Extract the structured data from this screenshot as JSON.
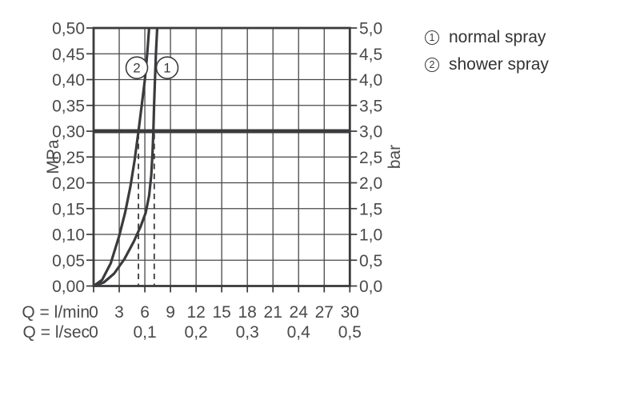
{
  "colors": {
    "ink": "#3b3b3d",
    "grid": "#47474a",
    "axis_text": "#4a4a4c",
    "legend_text": "#333335",
    "background": "#ffffff"
  },
  "legend": {
    "items": [
      {
        "symbol": "1",
        "label": "normal spray"
      },
      {
        "symbol": "2",
        "label": "shower spray"
      }
    ]
  },
  "chart_data": {
    "type": "line",
    "title": "",
    "grid": true,
    "x_axis": {
      "unit_primary": "Q = l/min",
      "unit_secondary": "Q = l/sec",
      "range_lmin": [
        0,
        30
      ],
      "tick_values_lmin": [
        0,
        3,
        6,
        9,
        12,
        15,
        18,
        21,
        24,
        27,
        30
      ],
      "tick_labels_lmin": [
        "0",
        "3",
        "6",
        "9",
        "12",
        "15",
        "18",
        "21",
        "24",
        "27",
        "30"
      ],
      "tick_values_lsec_positions_lmin": [
        0,
        6,
        12,
        18,
        24,
        30
      ],
      "tick_labels_lsec": [
        "0",
        "0,1",
        "0,2",
        "0,3",
        "0,4",
        "0,5"
      ]
    },
    "y_axis_left": {
      "unit": "MPa",
      "range": [
        0,
        0.5
      ],
      "tick_values": [
        0,
        0.05,
        0.1,
        0.15,
        0.2,
        0.25,
        0.3,
        0.35,
        0.4,
        0.45,
        0.5
      ],
      "tick_labels": [
        "0,00",
        "0,05",
        "0,10",
        "0,15",
        "0,20",
        "0,25",
        "0,30",
        "0,35",
        "0,40",
        "0,45",
        "0,50"
      ]
    },
    "y_axis_right": {
      "unit": "bar",
      "range": [
        0,
        5
      ],
      "tick_values": [
        0,
        0.5,
        1.0,
        1.5,
        2.0,
        2.5,
        3.0,
        3.5,
        4.0,
        4.5,
        5.0
      ],
      "tick_labels": [
        "0,0",
        "0,5",
        "1,0",
        "1,5",
        "2,0",
        "2,5",
        "3,0",
        "3,5",
        "4,0",
        "4,5",
        "5,0"
      ]
    },
    "reference_line": {
      "value_mpa": 0.3,
      "value_bar": 3.0
    },
    "dashed_guides_lmin": [
      5.25,
      7.1
    ],
    "series": [
      {
        "id": "1",
        "name": "normal spray",
        "flow_at_3bar_lmin": 7.1,
        "points_lmin_mpa": [
          [
            0,
            0
          ],
          [
            1.2,
            0.007
          ],
          [
            2.4,
            0.024
          ],
          [
            3.6,
            0.052
          ],
          [
            4.7,
            0.086
          ],
          [
            5.5,
            0.115
          ],
          [
            6.1,
            0.142
          ],
          [
            6.5,
            0.175
          ],
          [
            6.75,
            0.215
          ],
          [
            6.9,
            0.26
          ],
          [
            7.0,
            0.3
          ],
          [
            7.08,
            0.35
          ],
          [
            7.18,
            0.4
          ],
          [
            7.3,
            0.45
          ],
          [
            7.45,
            0.5
          ]
        ]
      },
      {
        "id": "2",
        "name": "shower spray",
        "flow_at_3bar_lmin": 5.25,
        "points_lmin_mpa": [
          [
            0,
            0
          ],
          [
            1.0,
            0.012
          ],
          [
            2.0,
            0.044
          ],
          [
            3.0,
            0.097
          ],
          [
            3.7,
            0.143
          ],
          [
            4.3,
            0.192
          ],
          [
            4.8,
            0.243
          ],
          [
            5.25,
            0.3
          ],
          [
            5.65,
            0.352
          ],
          [
            6.0,
            0.4
          ],
          [
            6.28,
            0.45
          ],
          [
            6.5,
            0.5
          ]
        ]
      }
    ],
    "curve_labels": [
      {
        "text": "2",
        "x_lmin": 5.06,
        "y_mpa": 0.423
      },
      {
        "text": "1",
        "x_lmin": 8.62,
        "y_mpa": 0.423
      }
    ]
  }
}
